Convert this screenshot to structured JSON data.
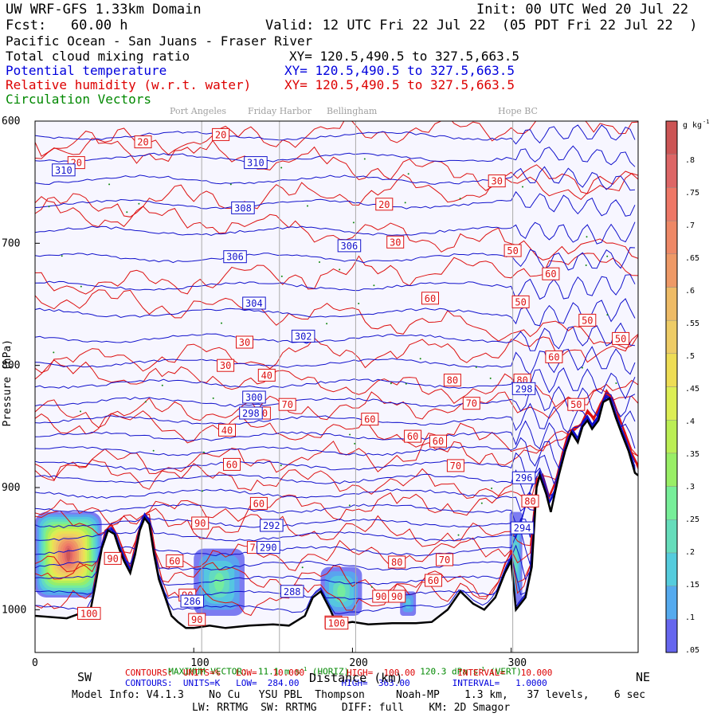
{
  "header": {
    "model": "UW WRF-GFS 1.33km Domain",
    "init": "Init: 00 UTC Wed 20 Jul 22",
    "fcst": "Fcst:   60.00 h",
    "valid": "Valid: 12 UTC Fri 22 Jul 22  (05 PDT Fri 22 Jul 22  )",
    "region": "Pacific Ocean - San Juans - Fraser River",
    "field1": "Total cloud mixing ratio",
    "field1_xy": "XY= 120.5,490.5 to 327.5,663.5",
    "field2": "Potential temperature",
    "field2_xy": "XY= 120.5,490.5 to 327.5,663.5",
    "field3": "Relative humidity (w.r.t. water)",
    "field3_xy": "XY= 120.5,490.5 to 327.5,663.5",
    "field4": "Circulation Vectors"
  },
  "locations": [
    "Port Angeles",
    "Friday Harbor",
    "Bellingham",
    "Hope BC"
  ],
  "footer": {
    "left_dir": "SW",
    "right_dir": "NE",
    "max_vector": "MAXIMUM VECTOR:  11.1 m s",
    "max_vector_horiz": " (HORIZ)",
    "max_vector_vert": "120.3 dPa s",
    "max_vector_vert_suffix": " (VERT)",
    "contours_rh": "CONTOURS:  UNITS=%   LOW=   10.000        HIGH=  100.00        INTERVAL=   10.000",
    "contours_k": "CONTOURS:  UNITS=K   LOW=  284.00        HIGH=  363.00        INTERVAL=   1.0000",
    "model_info": "Model Info: V4.1.3    No Cu   YSU PBL  Thompson     Noah-MP    1.3 km,   37 levels,    6 sec",
    "model_info2": "LW: RRTMG  SW: RRTMG    DIFF: full    KM: 2D Smagor",
    "x_axis_label": "Distance (km)",
    "y_axis_label": "Pressure (hPa)"
  },
  "colorbar": {
    "unit": "g kg",
    "labels": [
      ".8",
      ".75",
      ".7",
      ".65",
      ".6",
      ".55",
      ".5",
      ".45",
      ".4",
      ".35",
      ".3",
      ".25",
      ".2",
      ".15",
      ".1",
      ".05"
    ]
  },
  "chart_data": {
    "type": "cross-section contour",
    "xlabel": "Distance (km)",
    "ylabel": "Pressure (hPa)",
    "xlim": [
      0,
      380
    ],
    "ylim": [
      1035,
      600
    ],
    "x_ticks": [
      0,
      100,
      200,
      300
    ],
    "y_ticks": [
      600,
      700,
      800,
      900,
      1000
    ],
    "location_markers_km": [
      105,
      154,
      202,
      301
    ],
    "theta_labels": [
      {
        "text": "310",
        "x": 18,
        "p": 640
      },
      {
        "text": "310",
        "x": 139,
        "p": 634
      },
      {
        "text": "308",
        "x": 131,
        "p": 671
      },
      {
        "text": "306",
        "x": 198,
        "p": 702
      },
      {
        "text": "306",
        "x": 126,
        "p": 711
      },
      {
        "text": "304",
        "x": 138,
        "p": 749
      },
      {
        "text": "302",
        "x": 169,
        "p": 776
      },
      {
        "text": "300",
        "x": 138,
        "p": 826
      },
      {
        "text": "298",
        "x": 136,
        "p": 839
      },
      {
        "text": "298",
        "x": 308,
        "p": 819
      },
      {
        "text": "296",
        "x": 308,
        "p": 892
      },
      {
        "text": "294",
        "x": 307,
        "p": 933
      },
      {
        "text": "292",
        "x": 149,
        "p": 931
      },
      {
        "text": "290",
        "x": 147,
        "p": 949
      },
      {
        "text": "288",
        "x": 162,
        "p": 985
      },
      {
        "text": "286",
        "x": 99,
        "p": 993
      }
    ],
    "rh_labels": [
      {
        "text": "20",
        "x": 26,
        "p": 634
      },
      {
        "text": "20",
        "x": 68,
        "p": 617
      },
      {
        "text": "20",
        "x": 117,
        "p": 611
      },
      {
        "text": "20",
        "x": 220,
        "p": 668
      },
      {
        "text": "30",
        "x": 227,
        "p": 699
      },
      {
        "text": "30",
        "x": 291,
        "p": 649
      },
      {
        "text": "30",
        "x": 132,
        "p": 781
      },
      {
        "text": "30",
        "x": 120,
        "p": 800
      },
      {
        "text": "40",
        "x": 146,
        "p": 808
      },
      {
        "text": "40",
        "x": 121,
        "p": 853
      },
      {
        "text": "50",
        "x": 143,
        "p": 839
      },
      {
        "text": "50",
        "x": 301,
        "p": 706
      },
      {
        "text": "50",
        "x": 306,
        "p": 748
      },
      {
        "text": "50",
        "x": 348,
        "p": 763
      },
      {
        "text": "50",
        "x": 369,
        "p": 778
      },
      {
        "text": "50",
        "x": 341,
        "p": 832
      },
      {
        "text": "60",
        "x": 249,
        "p": 745
      },
      {
        "text": "60",
        "x": 325,
        "p": 725
      },
      {
        "text": "60",
        "x": 211,
        "p": 844
      },
      {
        "text": "60",
        "x": 254,
        "p": 862
      },
      {
        "text": "60",
        "x": 327,
        "p": 793
      },
      {
        "text": "60",
        "x": 124,
        "p": 881
      },
      {
        "text": "60",
        "x": 141,
        "p": 913
      },
      {
        "text": "60",
        "x": 88,
        "p": 960
      },
      {
        "text": "60",
        "x": 238,
        "p": 858
      },
      {
        "text": "60",
        "x": 251,
        "p": 976
      },
      {
        "text": "70",
        "x": 159,
        "p": 832
      },
      {
        "text": "70",
        "x": 275,
        "p": 831
      },
      {
        "text": "70",
        "x": 265,
        "p": 882
      },
      {
        "text": "70",
        "x": 139,
        "p": 949
      },
      {
        "text": "70",
        "x": 258,
        "p": 959
      },
      {
        "text": "80",
        "x": 263,
        "p": 812
      },
      {
        "text": "80",
        "x": 307,
        "p": 812
      },
      {
        "text": "80",
        "x": 228,
        "p": 961
      },
      {
        "text": "80",
        "x": 312,
        "p": 911
      },
      {
        "text": "90",
        "x": 104,
        "p": 929
      },
      {
        "text": "90",
        "x": 49,
        "p": 958
      },
      {
        "text": "90",
        "x": 96,
        "p": 988
      },
      {
        "text": "90",
        "x": 218,
        "p": 989
      },
      {
        "text": "90",
        "x": 228,
        "p": 989
      },
      {
        "text": "90",
        "x": 102,
        "p": 1008
      },
      {
        "text": "90",
        "x": 188,
        "p": 1010
      },
      {
        "text": "100",
        "x": 34,
        "p": 1003
      },
      {
        "text": "100",
        "x": 190,
        "p": 1011
      }
    ],
    "terrain_profile": [
      [
        0,
        1005
      ],
      [
        20,
        1007
      ],
      [
        35,
        1000
      ],
      [
        38,
        980
      ],
      [
        42,
        950
      ],
      [
        46,
        935
      ],
      [
        50,
        938
      ],
      [
        53,
        950
      ],
      [
        56,
        960
      ],
      [
        60,
        970
      ],
      [
        63,
        955
      ],
      [
        66,
        935
      ],
      [
        69,
        925
      ],
      [
        72,
        930
      ],
      [
        75,
        955
      ],
      [
        78,
        975
      ],
      [
        82,
        990
      ],
      [
        86,
        1005
      ],
      [
        90,
        1010
      ],
      [
        95,
        1015
      ],
      [
        100,
        1015
      ],
      [
        110,
        1013
      ],
      [
        120,
        1015
      ],
      [
        135,
        1013
      ],
      [
        150,
        1012
      ],
      [
        160,
        1013
      ],
      [
        170,
        1005
      ],
      [
        175,
        990
      ],
      [
        180,
        985
      ],
      [
        186,
        1000
      ],
      [
        190,
        1012
      ],
      [
        200,
        1010
      ],
      [
        210,
        1012
      ],
      [
        225,
        1011
      ],
      [
        240,
        1011
      ],
      [
        250,
        1010
      ],
      [
        260,
        1000
      ],
      [
        268,
        985
      ],
      [
        276,
        995
      ],
      [
        283,
        1000
      ],
      [
        290,
        990
      ],
      [
        296,
        970
      ],
      [
        300,
        960
      ],
      [
        303,
        1000
      ],
      [
        306,
        995
      ],
      [
        309,
        990
      ],
      [
        313,
        965
      ],
      [
        316,
        900
      ],
      [
        318,
        890
      ],
      [
        322,
        905
      ],
      [
        325,
        920
      ],
      [
        330,
        890
      ],
      [
        334,
        870
      ],
      [
        338,
        855
      ],
      [
        342,
        863
      ],
      [
        345,
        850
      ],
      [
        348,
        845
      ],
      [
        351,
        852
      ],
      [
        355,
        845
      ],
      [
        358,
        830
      ],
      [
        362,
        827
      ],
      [
        366,
        843
      ],
      [
        370,
        857
      ],
      [
        374,
        870
      ],
      [
        378,
        888
      ],
      [
        380,
        890
      ]
    ],
    "colorbar_values": [
      0.05,
      0.1,
      0.15,
      0.2,
      0.25,
      0.3,
      0.35,
      0.4,
      0.45,
      0.5,
      0.55,
      0.6,
      0.65,
      0.7,
      0.75,
      0.8
    ],
    "cloud_regions": [
      {
        "x": [
          0,
          42
        ],
        "p": [
          920,
          990
        ],
        "max": 0.8
      },
      {
        "x": [
          100,
          132
        ],
        "p": [
          950,
          1005
        ],
        "max": 0.25
      },
      {
        "x": [
          180,
          206
        ],
        "p": [
          965,
          1005
        ],
        "max": 0.25
      },
      {
        "x": [
          230,
          240
        ],
        "p": [
          985,
          1005
        ],
        "max": 0.15
      },
      {
        "x": [
          299,
          307
        ],
        "p": [
          920,
          995
        ],
        "max": 0.2
      }
    ]
  }
}
